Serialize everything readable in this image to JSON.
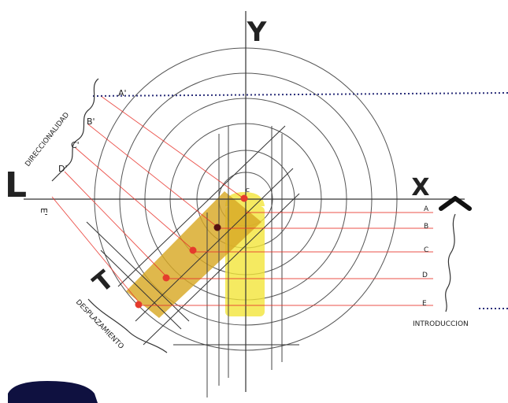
{
  "axes": {
    "y": "Y",
    "x": "X",
    "l": "L",
    "t": "T"
  },
  "letters_left": [
    "A'",
    "B'",
    "C'",
    "D'",
    "E'"
  ],
  "letters_right": [
    "A",
    "B",
    "C",
    "D",
    "E"
  ],
  "center_label": "C",
  "words": {
    "direccionalidad": "DIRECCIONALIDAD",
    "desplazamiento": "DESPLAZAMIENTO",
    "introduccion": "INTRODUCCION"
  },
  "colors": {
    "ink": "#3a3a3a",
    "red_line": "#e8322a",
    "red_dot": "#e53b2c",
    "ochre": "#d8a825",
    "yellow": "#f2e53a",
    "dotted_blue": "#2b2f7a",
    "corner_blob": "#0f1140"
  }
}
